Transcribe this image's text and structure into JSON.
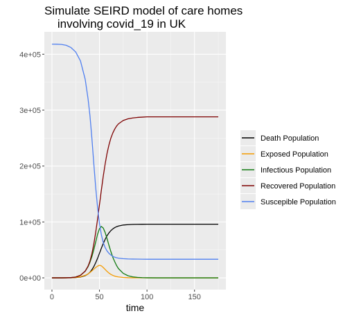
{
  "chart_data": {
    "type": "line",
    "title": "Simulate SEIRD model of care homes\n    involving covid_19 in UK",
    "xlabel": "time",
    "ylabel": "",
    "xlim": [
      -8,
      183
    ],
    "ylim": [
      -21000,
      440000
    ],
    "xticks": [
      0,
      50,
      100,
      150
    ],
    "xtick_labels": [
      "0",
      "50",
      "100",
      "150"
    ],
    "yticks": [
      0,
      100000,
      200000,
      300000,
      400000
    ],
    "ytick_labels": [
      "0e+00",
      "1e+05",
      "2e+05",
      "3e+05",
      "4e+05"
    ],
    "grid": true,
    "legend_position": "right",
    "panel_color": "#ebebeb",
    "x": [
      0,
      5,
      10,
      15,
      20,
      25,
      30,
      35,
      38,
      40,
      42,
      44,
      46,
      48,
      50,
      52,
      54,
      56,
      58,
      60,
      62,
      64,
      66,
      68,
      70,
      75,
      80,
      85,
      90,
      95,
      100,
      110,
      120,
      130,
      140,
      150,
      160,
      175
    ],
    "series": [
      {
        "name": "Death Population",
        "color": "#000000",
        "values": [
          0,
          0,
          0,
          50,
          150,
          500,
          1500,
          4000,
          7000,
          10000,
          14500,
          20000,
          27000,
          35000,
          44000,
          53000,
          61500,
          69000,
          75500,
          80500,
          84500,
          87500,
          89800,
          91500,
          92700,
          94500,
          95200,
          95600,
          95800,
          95900,
          96000,
          96000,
          96000,
          96000,
          96000,
          96000,
          96000,
          96000
        ]
      },
      {
        "name": "Exposed Population",
        "color": "#f59b00",
        "values": [
          0,
          0,
          0,
          50,
          200,
          700,
          2000,
          4500,
          7000,
          9500,
          12500,
          15500,
          18500,
          21000,
          22500,
          21500,
          18500,
          15000,
          11500,
          8500,
          6200,
          4500,
          3200,
          2300,
          1600,
          700,
          300,
          150,
          60,
          30,
          10,
          0,
          0,
          0,
          0,
          0,
          0,
          0
        ]
      },
      {
        "name": "Infectious Population",
        "color": "#117a11",
        "values": [
          0,
          0,
          0,
          100,
          500,
          1500,
          4500,
          12000,
          20000,
          28000,
          38000,
          50000,
          64000,
          78000,
          88000,
          92000,
          89000,
          81000,
          70000,
          58000,
          47000,
          37000,
          29000,
          22000,
          16500,
          8000,
          3800,
          1800,
          800,
          350,
          150,
          20,
          0,
          0,
          0,
          0,
          0,
          0
        ]
      },
      {
        "name": "Recovered Population",
        "color": "#7d0000",
        "values": [
          0,
          0,
          0,
          150,
          450,
          1500,
          4500,
          12000,
          21000,
          30000,
          43000,
          60000,
          81000,
          105000,
          131000,
          157000,
          182000,
          204000,
          223000,
          238000,
          250000,
          259000,
          266000,
          271500,
          275500,
          281500,
          284500,
          286000,
          287000,
          287500,
          288000,
          288000,
          288000,
          288000,
          288000,
          288000,
          288000,
          288000
        ]
      },
      {
        "name": "Suscepible Population",
        "color": "#4f7ff0",
        "values": [
          418000,
          417900,
          417500,
          416000,
          412000,
          404000,
          388000,
          355000,
          320000,
          290000,
          250000,
          205000,
          162000,
          126000,
          97000,
          77000,
          63000,
          54000,
          48000,
          43800,
          40800,
          38500,
          37000,
          36000,
          35200,
          34300,
          33800,
          33600,
          33500,
          33400,
          33300,
          33300,
          33300,
          33300,
          33300,
          33300,
          33300,
          33300
        ]
      }
    ]
  }
}
